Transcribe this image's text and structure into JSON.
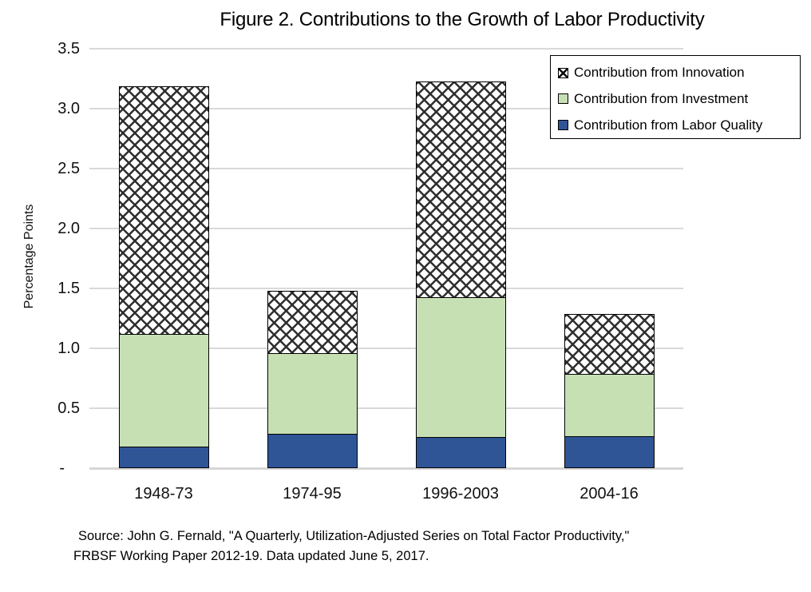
{
  "chart_data": {
    "type": "bar",
    "stacked": true,
    "title": "Figure 2.  Contributions to the Growth of Labor Productivity",
    "ylabel": "Percentage Points",
    "categories": [
      "1948-73",
      "1974-95",
      "1996-2003",
      "2004-16"
    ],
    "series": [
      {
        "id": "labor-quality",
        "name": "Contribution from Labor Quality",
        "color": "#2F5597",
        "pattern": "solid",
        "values": [
          0.18,
          0.29,
          0.26,
          0.27
        ]
      },
      {
        "id": "investment",
        "name": "Contribution from Investment",
        "color": "#C6E0B4",
        "pattern": "solid",
        "values": [
          0.95,
          0.68,
          1.18,
          0.53
        ]
      },
      {
        "id": "innovation",
        "name": "Contribution from Innovation",
        "color": "#FFFFFF",
        "pattern": "crosshatch",
        "values": [
          2.08,
          0.53,
          1.81,
          0.51
        ]
      }
    ],
    "bar_totals": [
      3.21,
      1.5,
      3.25,
      1.31
    ],
    "legend_order": [
      "innovation",
      "investment",
      "labor-quality"
    ],
    "legend_position": "top-right",
    "ylim": [
      0,
      3.5
    ],
    "ytick_step": 0.5,
    "ytick_labels": [
      "-",
      "0.5",
      "1.0",
      "1.5",
      "2.0",
      "2.5",
      "3.0",
      "3.5"
    ],
    "grid": true,
    "gridline_color": "#D9D9D9",
    "hatch_line_color": "#2E2E2E"
  },
  "source_note": {
    "line1": "Source:  John G. Fernald, \"A Quarterly, Utilization-Adjusted Series on Total Factor Productivity,\"",
    "line2": "FRBSF Working Paper 2012-19.  Data updated June 5, 2017."
  }
}
